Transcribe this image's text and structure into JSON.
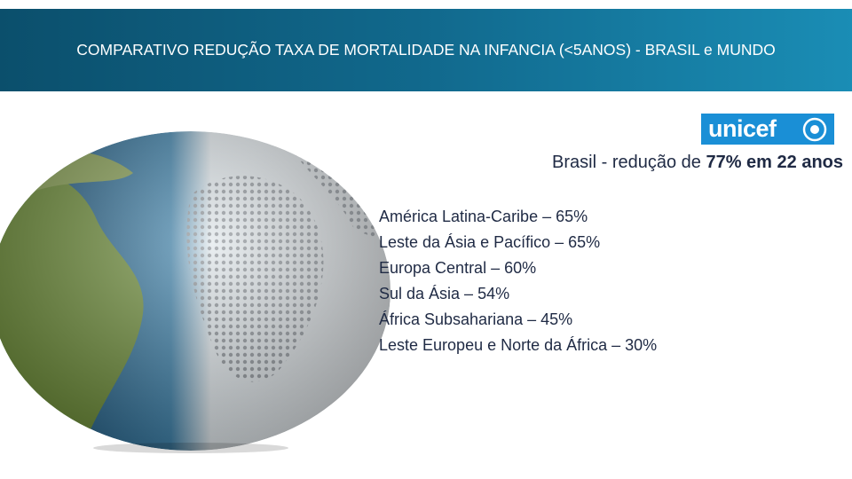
{
  "header": {
    "title": "COMPARATIVO REDUÇÃO TAXA DE MORTALIDADE NA INFANCIA (<5ANOS) - BRASIL e MUNDO"
  },
  "logo": {
    "text": "unicef"
  },
  "headline": {
    "text": "Brasil - redução de ",
    "emphasis": "77% em 22 anos"
  },
  "regions": [
    "América Latina-Caribe – 65%",
    "Leste da Ásia e Pacífico – 65%",
    "Europa Central – 60%",
    "Sul da Ásia – 54%",
    "África Subsahariana – 45%",
    "Leste Europeu e Norte da África – 30%"
  ]
}
